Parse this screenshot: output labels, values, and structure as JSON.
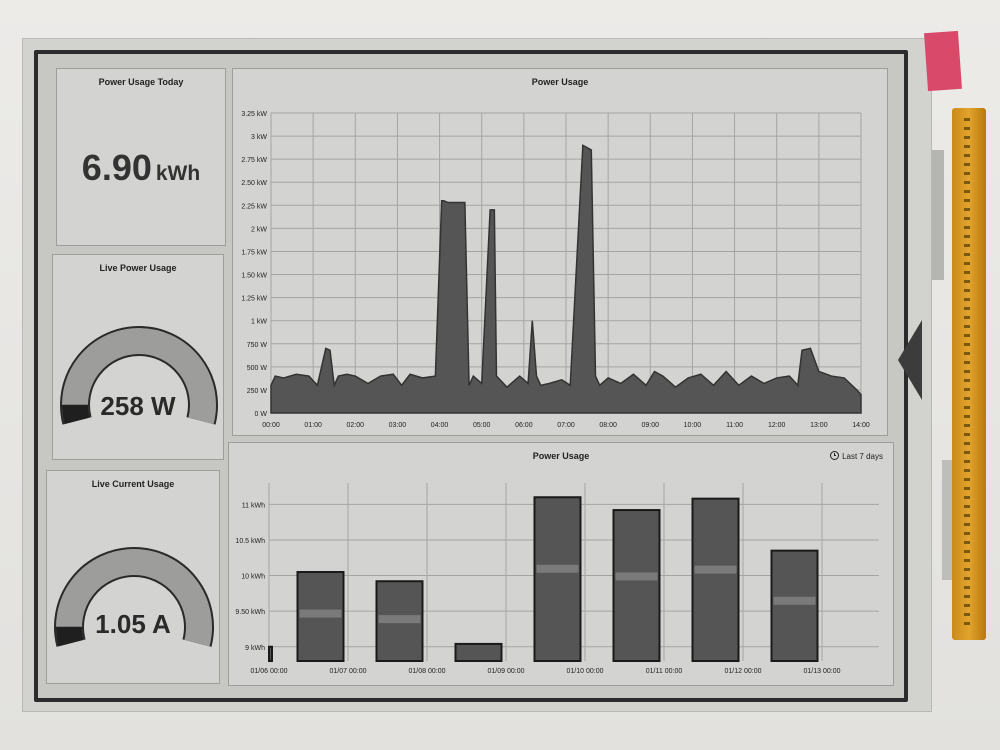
{
  "panels": {
    "today": {
      "title": "Power Usage Today",
      "value": "6.90",
      "unit": "kWh"
    },
    "live_power": {
      "title": "Live Power Usage",
      "value_text": "258 W",
      "fraction": 0.07
    },
    "live_current": {
      "title": "Live Current Usage",
      "value_text": "1.05 A",
      "fraction": 0.07
    }
  },
  "colors": {
    "fill": "#555555",
    "fill_dark": "#333333",
    "grid": "#a5a5a3",
    "gauge_bg": "#9d9d9b"
  },
  "chart_data": [
    {
      "type": "area",
      "title": "Power Usage",
      "x_ticks": [
        "00:00",
        "01:00",
        "02:00",
        "03:00",
        "04:00",
        "05:00",
        "06:00",
        "07:00",
        "08:00",
        "09:00",
        "10:00",
        "11:00",
        "12:00",
        "13:00",
        "14:00"
      ],
      "y_ticks": [
        "0 W",
        "250 W",
        "500 W",
        "750 W",
        "1 kW",
        "1.25 kW",
        "1.50 kW",
        "1.75 kW",
        "2 kW",
        "2.25 kW",
        "2.50 kW",
        "2.75 kW",
        "3 kW",
        "3.25 kW"
      ],
      "ylim": [
        0,
        3.25
      ],
      "xlim": [
        0,
        14
      ],
      "series": [
        {
          "x": [
            0,
            0.1,
            0.3,
            0.6,
            0.9,
            1.1,
            1.3,
            1.4,
            1.5,
            1.6,
            1.8,
            2.0,
            2.3,
            2.6,
            2.9,
            3.1,
            3.3,
            3.6,
            3.9,
            4.05,
            4.1,
            4.2,
            4.6,
            4.7,
            4.8,
            5.0,
            5.2,
            5.3,
            5.35,
            5.6,
            5.9,
            6.1,
            6.2,
            6.3,
            6.4,
            6.6,
            6.9,
            7.1,
            7.4,
            7.6,
            7.7,
            7.8,
            8.0,
            8.3,
            8.6,
            8.9,
            9.1,
            9.3,
            9.6,
            9.9,
            10.2,
            10.5,
            10.8,
            11.1,
            11.4,
            11.7,
            12.0,
            12.3,
            12.5,
            12.6,
            12.8,
            13.0,
            13.3,
            13.6,
            13.9,
            14.0
          ],
          "y": [
            0.3,
            0.4,
            0.38,
            0.42,
            0.4,
            0.3,
            0.7,
            0.68,
            0.3,
            0.4,
            0.42,
            0.4,
            0.32,
            0.4,
            0.42,
            0.3,
            0.42,
            0.38,
            0.4,
            2.3,
            2.3,
            2.28,
            2.28,
            0.3,
            0.4,
            0.32,
            2.2,
            2.2,
            0.4,
            0.28,
            0.4,
            0.32,
            1.0,
            0.4,
            0.3,
            0.32,
            0.36,
            0.3,
            2.9,
            2.85,
            0.4,
            0.3,
            0.38,
            0.32,
            0.42,
            0.3,
            0.45,
            0.4,
            0.28,
            0.38,
            0.42,
            0.3,
            0.45,
            0.3,
            0.4,
            0.32,
            0.38,
            0.4,
            0.3,
            0.68,
            0.7,
            0.45,
            0.4,
            0.38,
            0.25,
            0.2
          ]
        }
      ]
    },
    {
      "type": "bar",
      "title": "Power Usage",
      "range_label": "Last 7 days",
      "x_ticks": [
        "01/06 00:00",
        "01/07 00:00",
        "01/08 00:00",
        "01/09 00:00",
        "01/10 00:00",
        "01/11 00:00",
        "01/12 00:00",
        "01/13 00:00"
      ],
      "y_ticks": [
        "9 kWh",
        "9.50 kWh",
        "10 kWh",
        "10.5 kWh",
        "11 kWh"
      ],
      "ylim": [
        8.8,
        11.3
      ],
      "categories": [
        "01/06",
        "01/07",
        "01/08",
        "01/09",
        "01/10",
        "01/11",
        "01/12",
        "01/13"
      ],
      "values": [
        9.0,
        10.05,
        9.92,
        9.04,
        11.1,
        10.92,
        11.08,
        10.35
      ]
    }
  ]
}
